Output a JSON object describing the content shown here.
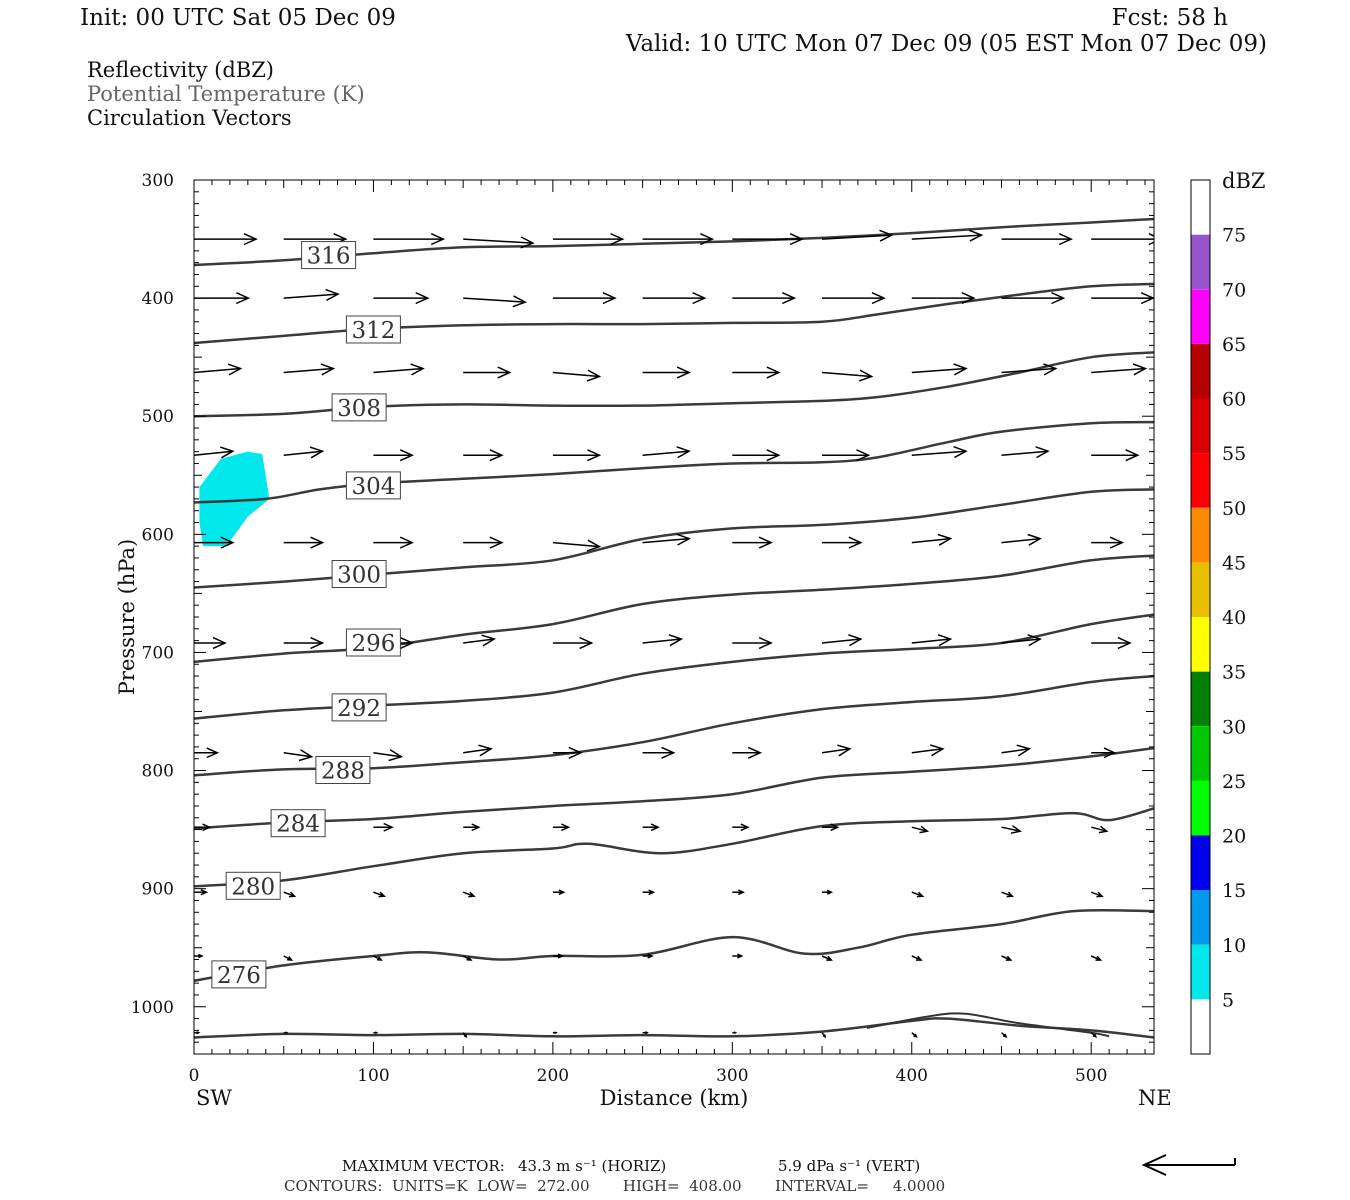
{
  "header": {
    "init": "Init: 00 UTC Sat 05 Dec 09",
    "fcst": "Fcst:   58 h",
    "valid": "Valid: 10 UTC Mon 07 Dec 09 (05 EST Mon 07 Dec 09)",
    "field1": "Reflectivity (dBZ)",
    "field2": "Potential Temperature (K)",
    "field3": "Circulation Vectors"
  },
  "footer": {
    "max_vector_prefix": "MAXIMUM VECTOR:",
    "max_vector_horiz": "43.3 m s⁻¹ (HORIZ)",
    "max_vector_vert": "5.9 dPa s⁻¹ (VERT)",
    "contours": "CONTOURS:  UNITS=K  LOW=  272.00       HIGH=  408.00       INTERVAL=     4.0000"
  },
  "colors": {
    "contour": "#3a3a3a",
    "reflectivity_5": "#00e8ec"
  },
  "chart_data": {
    "type": "contour",
    "xlabel": "Distance (km)",
    "ylabel": "Pressure (hPa)",
    "xlim": [
      0,
      535
    ],
    "ylim": [
      300,
      1040
    ],
    "y_inverted": true,
    "x_ticks": [
      0,
      100,
      200,
      300,
      400,
      500
    ],
    "y_ticks": [
      300,
      400,
      500,
      600,
      700,
      800,
      900,
      1000
    ],
    "x_left_label": "SW",
    "x_right_label": "NE",
    "colorbar": {
      "title": "dBZ",
      "levels": [
        "5",
        "10",
        "15",
        "20",
        "25",
        "30",
        "35",
        "40",
        "45",
        "50",
        "55",
        "60",
        "65",
        "70",
        "75"
      ],
      "colors": [
        "#00e8ec",
        "#0099ee",
        "#0000ee",
        "#00ff00",
        "#00c800",
        "#008000",
        "#ffff00",
        "#e8c000",
        "#ff8c00",
        "#ff0000",
        "#d80000",
        "#b40000",
        "#ff00ff",
        "#9955cc",
        "#ffffff"
      ]
    },
    "reflectivity_areas": [
      {
        "dbz": 5,
        "points": [
          [
            3,
            560
          ],
          [
            15,
            536
          ],
          [
            30,
            530
          ],
          [
            38,
            532
          ],
          [
            42,
            570
          ],
          [
            30,
            585
          ],
          [
            18,
            610
          ],
          [
            5,
            610
          ],
          [
            3,
            590
          ]
        ]
      }
    ],
    "theta_contours": [
      {
        "theta": 316,
        "label": "316",
        "label_at": [
          75,
          364
        ],
        "points": [
          [
            0,
            372
          ],
          [
            50,
            368
          ],
          [
            100,
            362
          ],
          [
            150,
            357
          ],
          [
            200,
            356
          ],
          [
            250,
            354
          ],
          [
            300,
            352
          ],
          [
            350,
            349
          ],
          [
            400,
            345
          ],
          [
            450,
            340
          ],
          [
            500,
            336
          ],
          [
            535,
            333
          ]
        ]
      },
      {
        "theta": 312,
        "label": "312",
        "label_at": [
          100,
          427
        ],
        "points": [
          [
            0,
            438
          ],
          [
            50,
            432
          ],
          [
            100,
            426
          ],
          [
            150,
            423
          ],
          [
            200,
            422
          ],
          [
            250,
            422
          ],
          [
            300,
            421
          ],
          [
            350,
            420
          ],
          [
            380,
            414
          ],
          [
            420,
            405
          ],
          [
            460,
            397
          ],
          [
            500,
            390
          ],
          [
            535,
            388
          ]
        ]
      },
      {
        "theta": 308,
        "label": "308",
        "label_at": [
          92,
          493
        ],
        "points": [
          [
            0,
            500
          ],
          [
            50,
            498
          ],
          [
            100,
            492
          ],
          [
            150,
            490
          ],
          [
            200,
            491
          ],
          [
            250,
            491
          ],
          [
            300,
            489
          ],
          [
            350,
            487
          ],
          [
            380,
            484
          ],
          [
            420,
            475
          ],
          [
            460,
            463
          ],
          [
            500,
            450
          ],
          [
            535,
            446
          ]
        ]
      },
      {
        "theta": 304,
        "label": "304",
        "label_at": [
          100,
          559
        ],
        "points": [
          [
            0,
            573
          ],
          [
            40,
            570
          ],
          [
            70,
            562
          ],
          [
            100,
            557
          ],
          [
            150,
            553
          ],
          [
            200,
            549
          ],
          [
            250,
            544
          ],
          [
            300,
            540
          ],
          [
            350,
            539
          ],
          [
            380,
            535
          ],
          [
            420,
            522
          ],
          [
            450,
            513
          ],
          [
            500,
            506
          ],
          [
            535,
            505
          ]
        ]
      },
      {
        "theta": 300,
        "label": "300",
        "label_at": [
          92,
          634
        ],
        "points": [
          [
            0,
            645
          ],
          [
            50,
            640
          ],
          [
            100,
            634
          ],
          [
            150,
            628
          ],
          [
            200,
            622
          ],
          [
            250,
            604
          ],
          [
            300,
            595
          ],
          [
            350,
            592
          ],
          [
            400,
            586
          ],
          [
            450,
            575
          ],
          [
            500,
            564
          ],
          [
            535,
            562
          ]
        ]
      },
      {
        "theta": 296,
        "label": "296",
        "label_at": [
          100,
          692
        ],
        "points": [
          [
            0,
            708
          ],
          [
            50,
            701
          ],
          [
            100,
            696
          ],
          [
            150,
            685
          ],
          [
            200,
            676
          ],
          [
            250,
            659
          ],
          [
            300,
            651
          ],
          [
            350,
            647
          ],
          [
            400,
            642
          ],
          [
            450,
            635
          ],
          [
            500,
            622
          ],
          [
            535,
            618
          ]
        ]
      },
      {
        "theta": 292,
        "label": "292",
        "label_at": [
          92,
          747
        ],
        "points": [
          [
            0,
            756
          ],
          [
            50,
            749
          ],
          [
            100,
            745
          ],
          [
            150,
            741
          ],
          [
            200,
            734
          ],
          [
            250,
            718
          ],
          [
            300,
            708
          ],
          [
            350,
            701
          ],
          [
            400,
            697
          ],
          [
            450,
            692
          ],
          [
            500,
            676
          ],
          [
            535,
            668
          ]
        ]
      },
      {
        "theta": 288,
        "label": "288",
        "label_at": [
          83,
          800
        ],
        "points": [
          [
            0,
            804
          ],
          [
            50,
            799
          ],
          [
            100,
            798
          ],
          [
            150,
            793
          ],
          [
            200,
            787
          ],
          [
            250,
            776
          ],
          [
            300,
            760
          ],
          [
            350,
            748
          ],
          [
            400,
            742
          ],
          [
            450,
            737
          ],
          [
            500,
            725
          ],
          [
            535,
            720
          ]
        ]
      },
      {
        "theta": 284,
        "label": "284",
        "label_at": [
          58,
          845
        ],
        "points": [
          [
            0,
            849
          ],
          [
            50,
            844
          ],
          [
            100,
            841
          ],
          [
            150,
            835
          ],
          [
            200,
            830
          ],
          [
            250,
            826
          ],
          [
            300,
            820
          ],
          [
            350,
            806
          ],
          [
            400,
            801
          ],
          [
            450,
            796
          ],
          [
            500,
            788
          ],
          [
            535,
            781
          ]
        ]
      },
      {
        "theta": 280,
        "label": "280",
        "label_at": [
          33,
          898
        ],
        "points": [
          [
            0,
            898
          ],
          [
            50,
            893
          ],
          [
            100,
            881
          ],
          [
            150,
            870
          ],
          [
            200,
            866
          ],
          [
            220,
            862
          ],
          [
            260,
            870
          ],
          [
            300,
            862
          ],
          [
            350,
            847
          ],
          [
            400,
            843
          ],
          [
            450,
            841
          ],
          [
            490,
            836
          ],
          [
            510,
            842
          ],
          [
            535,
            832
          ]
        ]
      },
      {
        "theta": 276,
        "label": "276",
        "label_at": [
          25,
          973
        ],
        "points": [
          [
            0,
            978
          ],
          [
            50,
            965
          ],
          [
            100,
            957
          ],
          [
            130,
            954
          ],
          [
            170,
            960
          ],
          [
            200,
            957
          ],
          [
            250,
            956
          ],
          [
            300,
            941
          ],
          [
            340,
            955
          ],
          [
            370,
            950
          ],
          [
            400,
            939
          ],
          [
            450,
            930
          ],
          [
            490,
            919
          ],
          [
            535,
            919
          ]
        ]
      },
      {
        "theta": 272,
        "label": "",
        "label_at": null,
        "points": [
          [
            0,
            1026
          ],
          [
            50,
            1023
          ],
          [
            100,
            1024
          ],
          [
            150,
            1023
          ],
          [
            200,
            1025
          ],
          [
            250,
            1024
          ],
          [
            300,
            1025
          ],
          [
            350,
            1021
          ],
          [
            400,
            1012
          ],
          [
            420,
            1010
          ],
          [
            460,
            1016
          ],
          [
            500,
            1020
          ],
          [
            535,
            1026
          ]
        ]
      }
    ],
    "ground_line": {
      "points": [
        [
          375,
          1018
        ],
        [
          410,
          1008
        ],
        [
          430,
          1006
        ],
        [
          460,
          1014
        ],
        [
          500,
          1022
        ],
        [
          510,
          1025
        ]
      ]
    },
    "vector_rows": [
      {
        "p": 350,
        "x": [
          0,
          50,
          100,
          150,
          200,
          250,
          300,
          350,
          400,
          450,
          500
        ],
        "u": [
          40,
          40,
          45,
          45,
          45,
          45,
          45,
          45,
          45,
          45,
          45
        ],
        "v": [
          0,
          0,
          0,
          1,
          0,
          0,
          0,
          -1,
          -1,
          0,
          0
        ]
      },
      {
        "p": 400,
        "x": [
          0,
          50,
          100,
          150,
          200,
          250,
          300,
          350,
          400,
          450,
          500
        ],
        "u": [
          35,
          35,
          35,
          40,
          40,
          40,
          40,
          40,
          40,
          40,
          40
        ],
        "v": [
          0,
          -1,
          0,
          1,
          0,
          0,
          0,
          0,
          0,
          0,
          0
        ]
      },
      {
        "p": 463,
        "x": [
          0,
          50,
          100,
          150,
          200,
          250,
          300,
          350,
          400,
          450,
          500
        ],
        "u": [
          30,
          32,
          32,
          30,
          30,
          30,
          30,
          32,
          35,
          35,
          35
        ],
        "v": [
          -1,
          -1,
          -1,
          0,
          1,
          0,
          0,
          1,
          -1,
          -1,
          -1
        ]
      },
      {
        "p": 533,
        "x": [
          0,
          50,
          100,
          150,
          200,
          250,
          300,
          350,
          400,
          450,
          500
        ],
        "u": [
          25,
          25,
          25,
          25,
          30,
          30,
          30,
          30,
          35,
          30,
          30
        ],
        "v": [
          -1,
          -1,
          0,
          0,
          0,
          -1,
          0,
          0,
          -1,
          -1,
          0
        ]
      },
      {
        "p": 607,
        "x": [
          0,
          50,
          100,
          150,
          200,
          250,
          300,
          350,
          400,
          450,
          500
        ],
        "u": [
          25,
          25,
          25,
          25,
          30,
          30,
          25,
          25,
          25,
          25,
          20
        ],
        "v": [
          0,
          0,
          0,
          0,
          1,
          -1,
          0,
          0,
          -1,
          -1,
          0
        ]
      },
      {
        "p": 692,
        "x": [
          0,
          50,
          100,
          150,
          200,
          250,
          300,
          350,
          400,
          450,
          500
        ],
        "u": [
          20,
          25,
          25,
          20,
          25,
          25,
          25,
          25,
          25,
          25,
          25
        ],
        "v": [
          0,
          0,
          0,
          -1,
          0,
          -1,
          0,
          -1,
          -1,
          -1,
          0
        ]
      },
      {
        "p": 785,
        "x": [
          0,
          50,
          100,
          150,
          200,
          250,
          300,
          350,
          400,
          450,
          500
        ],
        "u": [
          15,
          18,
          18,
          18,
          18,
          20,
          18,
          18,
          20,
          18,
          15
        ],
        "v": [
          0,
          1,
          1,
          -1,
          0,
          0,
          0,
          -1,
          -1,
          -1,
          0
        ]
      },
      {
        "p": 848,
        "x": [
          0,
          50,
          100,
          150,
          200,
          250,
          300,
          350,
          400,
          450,
          500
        ],
        "u": [
          10,
          12,
          12,
          10,
          10,
          10,
          10,
          10,
          10,
          12,
          10
        ],
        "v": [
          0,
          0,
          0,
          0,
          0,
          0,
          0,
          0,
          1,
          1,
          1
        ]
      },
      {
        "p": 903,
        "x": [
          0,
          50,
          100,
          150,
          200,
          250,
          300,
          350,
          400,
          450,
          500
        ],
        "u": [
          8,
          7,
          7,
          7,
          7,
          7,
          7,
          6,
          7,
          7,
          7
        ],
        "v": [
          0,
          1,
          1,
          1,
          0,
          0,
          0,
          0,
          1,
          1,
          1
        ]
      },
      {
        "p": 957,
        "x": [
          0,
          50,
          100,
          150,
          200,
          250,
          300,
          350,
          400,
          450,
          500
        ],
        "u": [
          5,
          5,
          5,
          5,
          6,
          6,
          6,
          6,
          6,
          6,
          6
        ],
        "v": [
          0,
          1,
          1,
          1,
          0,
          0,
          0,
          1,
          1,
          1,
          1
        ]
      },
      {
        "p": 1022,
        "x": [
          0,
          50,
          100,
          150,
          200,
          250,
          300,
          350,
          400,
          450,
          500
        ],
        "u": [
          3,
          2,
          2,
          2,
          2,
          3,
          2,
          2,
          3,
          3,
          3
        ],
        "v": [
          0,
          0,
          0,
          1,
          0,
          0,
          0,
          1,
          1,
          1,
          1
        ]
      }
    ]
  }
}
